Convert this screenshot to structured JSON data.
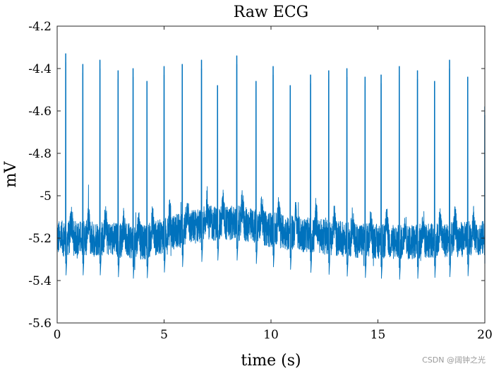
{
  "chart_data": {
    "type": "line",
    "title": "Raw ECG",
    "xlabel": "time (s)",
    "ylabel": "mV",
    "xlim": [
      0,
      20
    ],
    "ylim": [
      -5.6,
      -4.2
    ],
    "x_ticks": [
      0,
      5,
      10,
      15,
      20
    ],
    "x_tick_labels": [
      "0",
      "5",
      "10",
      "15",
      "20"
    ],
    "y_ticks": [
      -5.6,
      -5.4,
      -5.2,
      -5.0,
      -4.8,
      -4.6,
      -4.4,
      -4.2
    ],
    "y_tick_labels": [
      "-5.6",
      "-5.4",
      "-5.2",
      "-5",
      "-4.8",
      "-4.6",
      "-4.4",
      "-4.2"
    ],
    "grid": false,
    "series": [
      {
        "name": "Raw ECG",
        "color": "#0072BD",
        "baseline": [
          [
            0,
            -5.2
          ],
          [
            2,
            -5.2
          ],
          [
            4,
            -5.22
          ],
          [
            5.5,
            -5.17
          ],
          [
            7,
            -5.13
          ],
          [
            8.5,
            -5.13
          ],
          [
            10,
            -5.16
          ],
          [
            12,
            -5.19
          ],
          [
            14,
            -5.21
          ],
          [
            16,
            -5.22
          ],
          [
            18,
            -5.21
          ],
          [
            20,
            -5.2
          ]
        ],
        "r_peaks": [
          [
            0.4,
            -4.37
          ],
          [
            1.2,
            -4.42
          ],
          [
            2.0,
            -4.4
          ],
          [
            2.85,
            -4.45
          ],
          [
            3.55,
            -4.44
          ],
          [
            4.2,
            -4.5
          ],
          [
            5.0,
            -4.43
          ],
          [
            5.85,
            -4.42
          ],
          [
            6.75,
            -4.4
          ],
          [
            7.5,
            -4.52
          ],
          [
            8.4,
            -4.38
          ],
          [
            9.3,
            -4.5
          ],
          [
            10.1,
            -4.43
          ],
          [
            10.9,
            -4.52
          ],
          [
            11.85,
            -4.47
          ],
          [
            12.7,
            -4.45
          ],
          [
            13.55,
            -4.44
          ],
          [
            14.4,
            -4.48
          ],
          [
            15.15,
            -4.47
          ],
          [
            16.0,
            -4.43
          ],
          [
            16.85,
            -4.45
          ],
          [
            17.65,
            -4.5
          ],
          [
            18.35,
            -4.4
          ],
          [
            19.2,
            -4.48
          ],
          [
            20.0,
            -4.62
          ]
        ],
        "noise_range": [
          -5.35,
          -5.05
        ],
        "min_value": -5.47,
        "max_value": -4.37
      }
    ]
  },
  "watermark": "CSDN @阔钟之光"
}
